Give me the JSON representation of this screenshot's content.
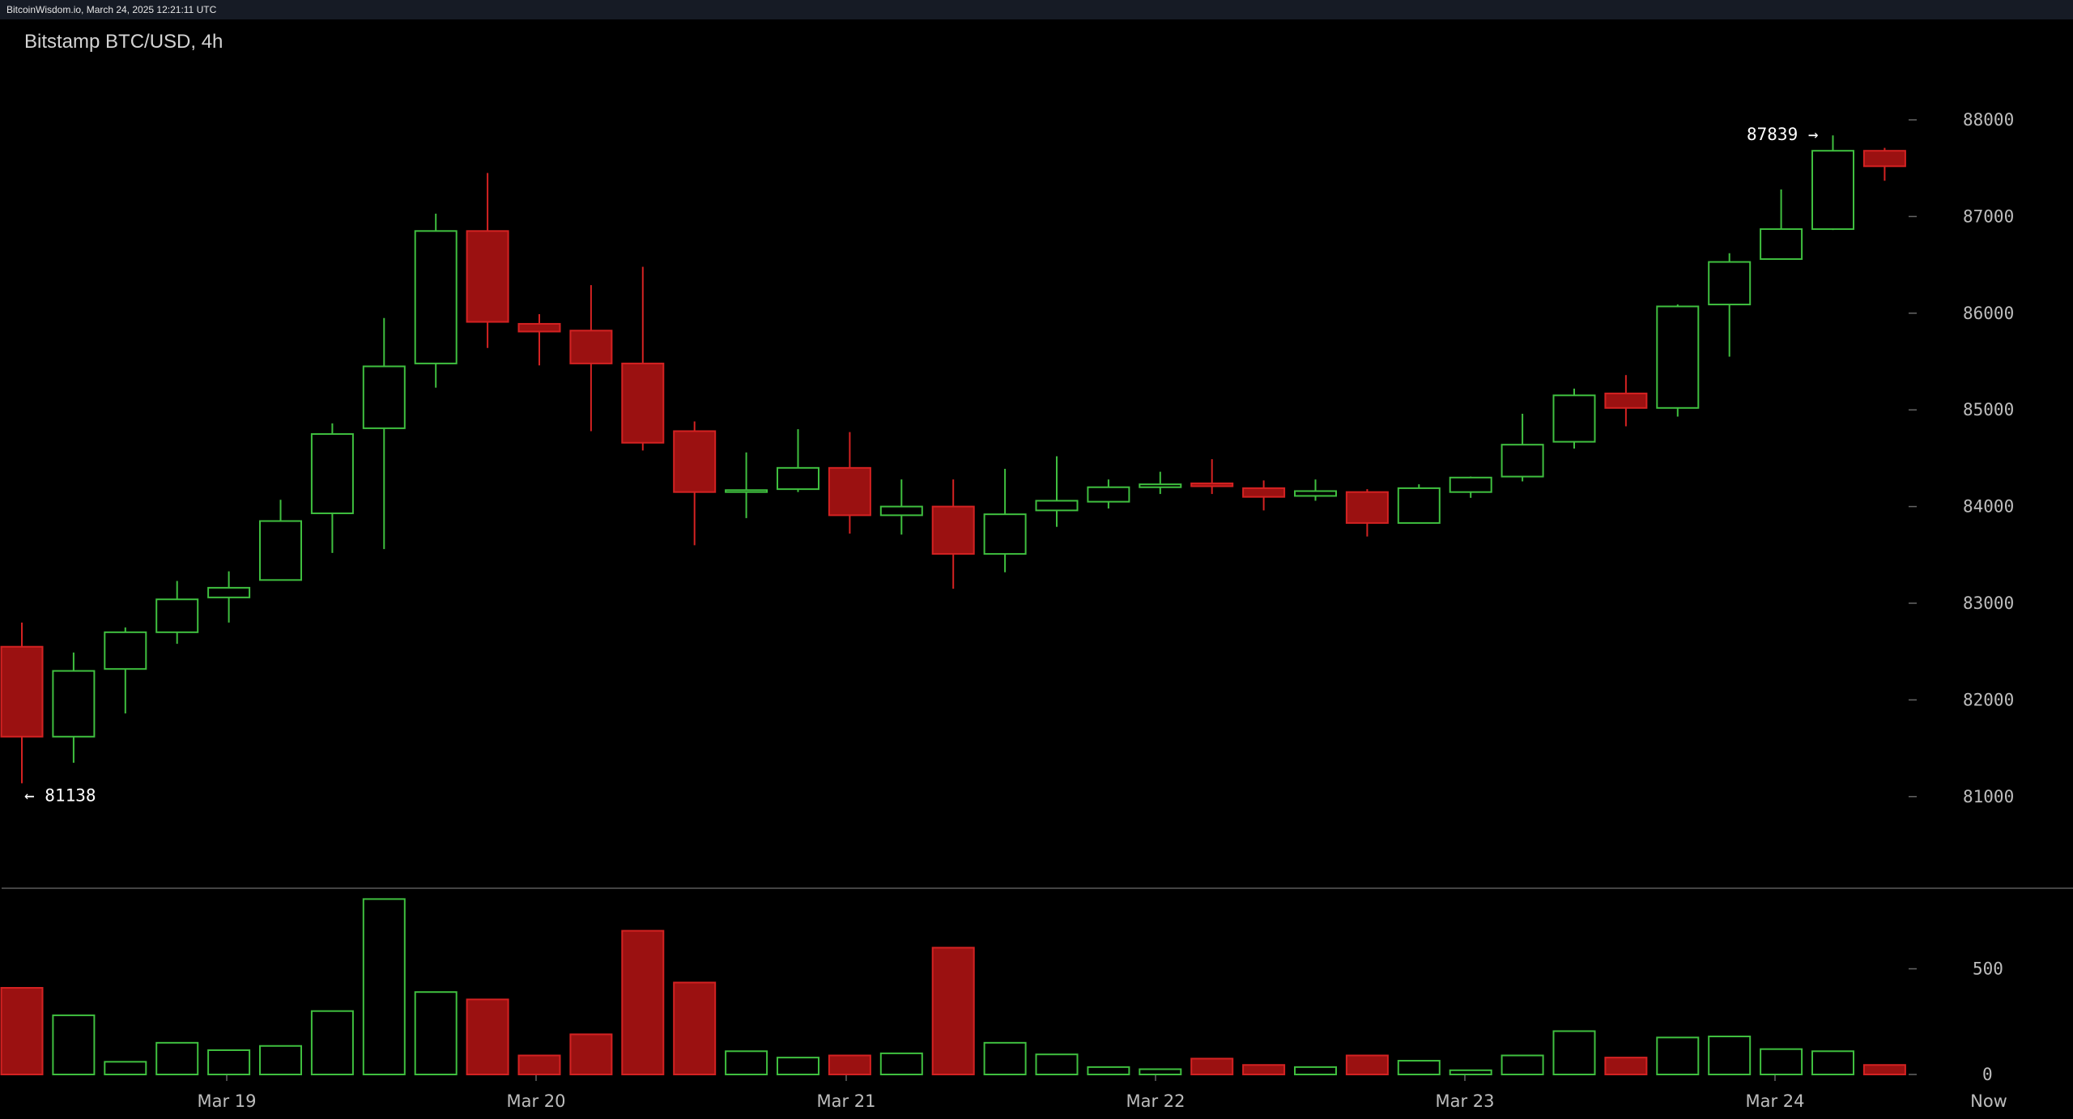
{
  "header": {
    "timestamp": "BitcoinWisdom.io, March 24, 2025 12:21:11 UTC"
  },
  "chart_title": "Bitstamp BTC/USD, 4h",
  "colors": {
    "up": "#3fbf3f",
    "down": "#9b1111",
    "down_stroke": "#d42222",
    "background": "#000000"
  },
  "chart_data": {
    "type": "candlestick",
    "title": "Bitstamp BTC/USD, 4h",
    "price_axis": {
      "ticks": [
        81000,
        82000,
        83000,
        84000,
        85000,
        86000,
        87000,
        88000
      ],
      "ylim": [
        80000,
        89000
      ]
    },
    "volume_axis": {
      "ticks": [
        0,
        500
      ],
      "ylim": [
        0,
        900
      ]
    },
    "x_labels": [
      "Mar 19",
      "Mar 20",
      "Mar 21",
      "Mar 22",
      "Mar 23",
      "Mar 24",
      "Now"
    ],
    "annotations": {
      "low": "← 81138",
      "high": "87839 →"
    },
    "candles": [
      {
        "o": 82550,
        "h": 82800,
        "l": 81138,
        "c": 81620,
        "v": 410
      },
      {
        "o": 81620,
        "h": 82490,
        "l": 81350,
        "c": 82300,
        "v": 280
      },
      {
        "o": 82320,
        "h": 82750,
        "l": 81860,
        "c": 82700,
        "v": 60
      },
      {
        "o": 82700,
        "h": 83230,
        "l": 82580,
        "c": 83040,
        "v": 150
      },
      {
        "o": 83060,
        "h": 83330,
        "l": 82800,
        "c": 83160,
        "v": 115
      },
      {
        "o": 83240,
        "h": 84070,
        "l": 83240,
        "c": 83850,
        "v": 135
      },
      {
        "o": 83930,
        "h": 84860,
        "l": 83520,
        "c": 84750,
        "v": 300
      },
      {
        "o": 84810,
        "h": 85950,
        "l": 83560,
        "c": 85450,
        "v": 830
      },
      {
        "o": 85480,
        "h": 87030,
        "l": 85230,
        "c": 86850,
        "v": 390
      },
      {
        "o": 86850,
        "h": 87450,
        "l": 85640,
        "c": 85910,
        "v": 355
      },
      {
        "o": 85890,
        "h": 85990,
        "l": 85460,
        "c": 85810,
        "v": 90
      },
      {
        "o": 85820,
        "h": 86290,
        "l": 84780,
        "c": 85480,
        "v": 190
      },
      {
        "o": 85480,
        "h": 86480,
        "l": 84580,
        "c": 84660,
        "v": 680
      },
      {
        "o": 84780,
        "h": 84880,
        "l": 83600,
        "c": 84150,
        "v": 435
      },
      {
        "o": 84150,
        "h": 84560,
        "l": 83880,
        "c": 84170,
        "v": 110
      },
      {
        "o": 84180,
        "h": 84800,
        "l": 84150,
        "c": 84400,
        "v": 80
      },
      {
        "o": 84400,
        "h": 84770,
        "l": 83720,
        "c": 83910,
        "v": 90
      },
      {
        "o": 83910,
        "h": 84280,
        "l": 83710,
        "c": 84000,
        "v": 100
      },
      {
        "o": 84000,
        "h": 84280,
        "l": 83150,
        "c": 83510,
        "v": 600
      },
      {
        "o": 83510,
        "h": 84390,
        "l": 83320,
        "c": 83920,
        "v": 150
      },
      {
        "o": 83960,
        "h": 84520,
        "l": 83790,
        "c": 84060,
        "v": 95
      },
      {
        "o": 84050,
        "h": 84280,
        "l": 83980,
        "c": 84200,
        "v": 35
      },
      {
        "o": 84200,
        "h": 84360,
        "l": 84130,
        "c": 84230,
        "v": 25
      },
      {
        "o": 84240,
        "h": 84490,
        "l": 84130,
        "c": 84210,
        "v": 75
      },
      {
        "o": 84190,
        "h": 84270,
        "l": 83960,
        "c": 84100,
        "v": 45
      },
      {
        "o": 84110,
        "h": 84280,
        "l": 84060,
        "c": 84160,
        "v": 35
      },
      {
        "o": 84150,
        "h": 84180,
        "l": 83690,
        "c": 83830,
        "v": 90
      },
      {
        "o": 83830,
        "h": 84230,
        "l": 83830,
        "c": 84190,
        "v": 65
      },
      {
        "o": 84150,
        "h": 84310,
        "l": 84090,
        "c": 84300,
        "v": 20
      },
      {
        "o": 84310,
        "h": 84960,
        "l": 84260,
        "c": 84640,
        "v": 90
      },
      {
        "o": 84670,
        "h": 85220,
        "l": 84600,
        "c": 85150,
        "v": 205
      },
      {
        "o": 85170,
        "h": 85360,
        "l": 84830,
        "c": 85020,
        "v": 80
      },
      {
        "o": 85020,
        "h": 86090,
        "l": 84930,
        "c": 86070,
        "v": 175
      },
      {
        "o": 86090,
        "h": 86620,
        "l": 85550,
        "c": 86530,
        "v": 180
      },
      {
        "o": 86560,
        "h": 87280,
        "l": 86560,
        "c": 86870,
        "v": 120
      },
      {
        "o": 86870,
        "h": 87839,
        "l": 86860,
        "c": 87680,
        "v": 110
      },
      {
        "o": 87680,
        "h": 87710,
        "l": 87370,
        "c": 87520,
        "v": 45
      }
    ]
  }
}
